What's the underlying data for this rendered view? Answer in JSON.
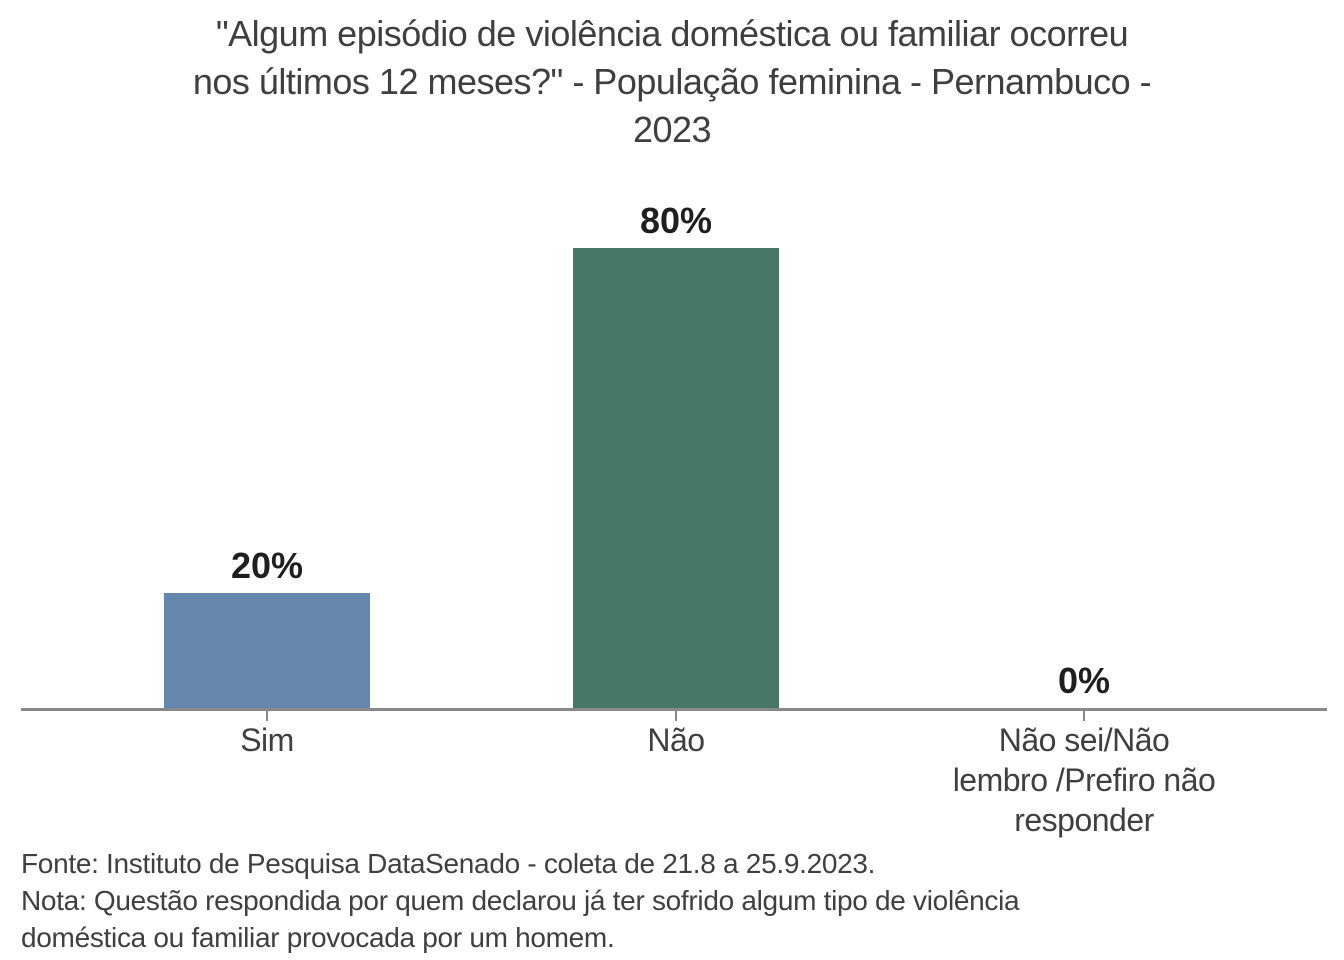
{
  "chart_data": {
    "type": "bar",
    "title": "\"Algum episódio de violência doméstica ou familiar ocorreu nos últimos 12 meses?\" - População feminina - Pernambuco - 2023",
    "title_lines": [
      "\"Algum episódio de violência doméstica ou familiar ocorreu",
      "nos últimos 12 meses?\" - População feminina - Pernambuco -",
      "2023"
    ],
    "categories": [
      "Sim",
      "Não",
      "Não sei/Não lembro /Prefiro não responder"
    ],
    "categories_wrapped": [
      [
        "Sim"
      ],
      [
        "Não"
      ],
      [
        "Não sei/Não",
        "lembro /Prefiro não",
        "responder"
      ]
    ],
    "values": [
      20,
      80,
      0
    ],
    "value_labels": [
      "20%",
      "80%",
      "0%"
    ],
    "bar_colors": [
      "#6587AE",
      "#477767",
      null
    ],
    "ylim": [
      0,
      80
    ],
    "xlabel": "",
    "ylabel": "",
    "grid": false,
    "legend": false,
    "y_axis_visible": false,
    "axis_line_color": "#898989",
    "text_color": "#3F3F3F",
    "value_label_color": "#1F1F1F",
    "source": "Fonte: Instituto de Pesquisa DataSenado - coleta de 21.8 a 25.9.2023.",
    "note": "Nota: Questão respondida por quem declarou já ter sofrido algum tipo de violência doméstica ou familiar provocada por um homem."
  }
}
